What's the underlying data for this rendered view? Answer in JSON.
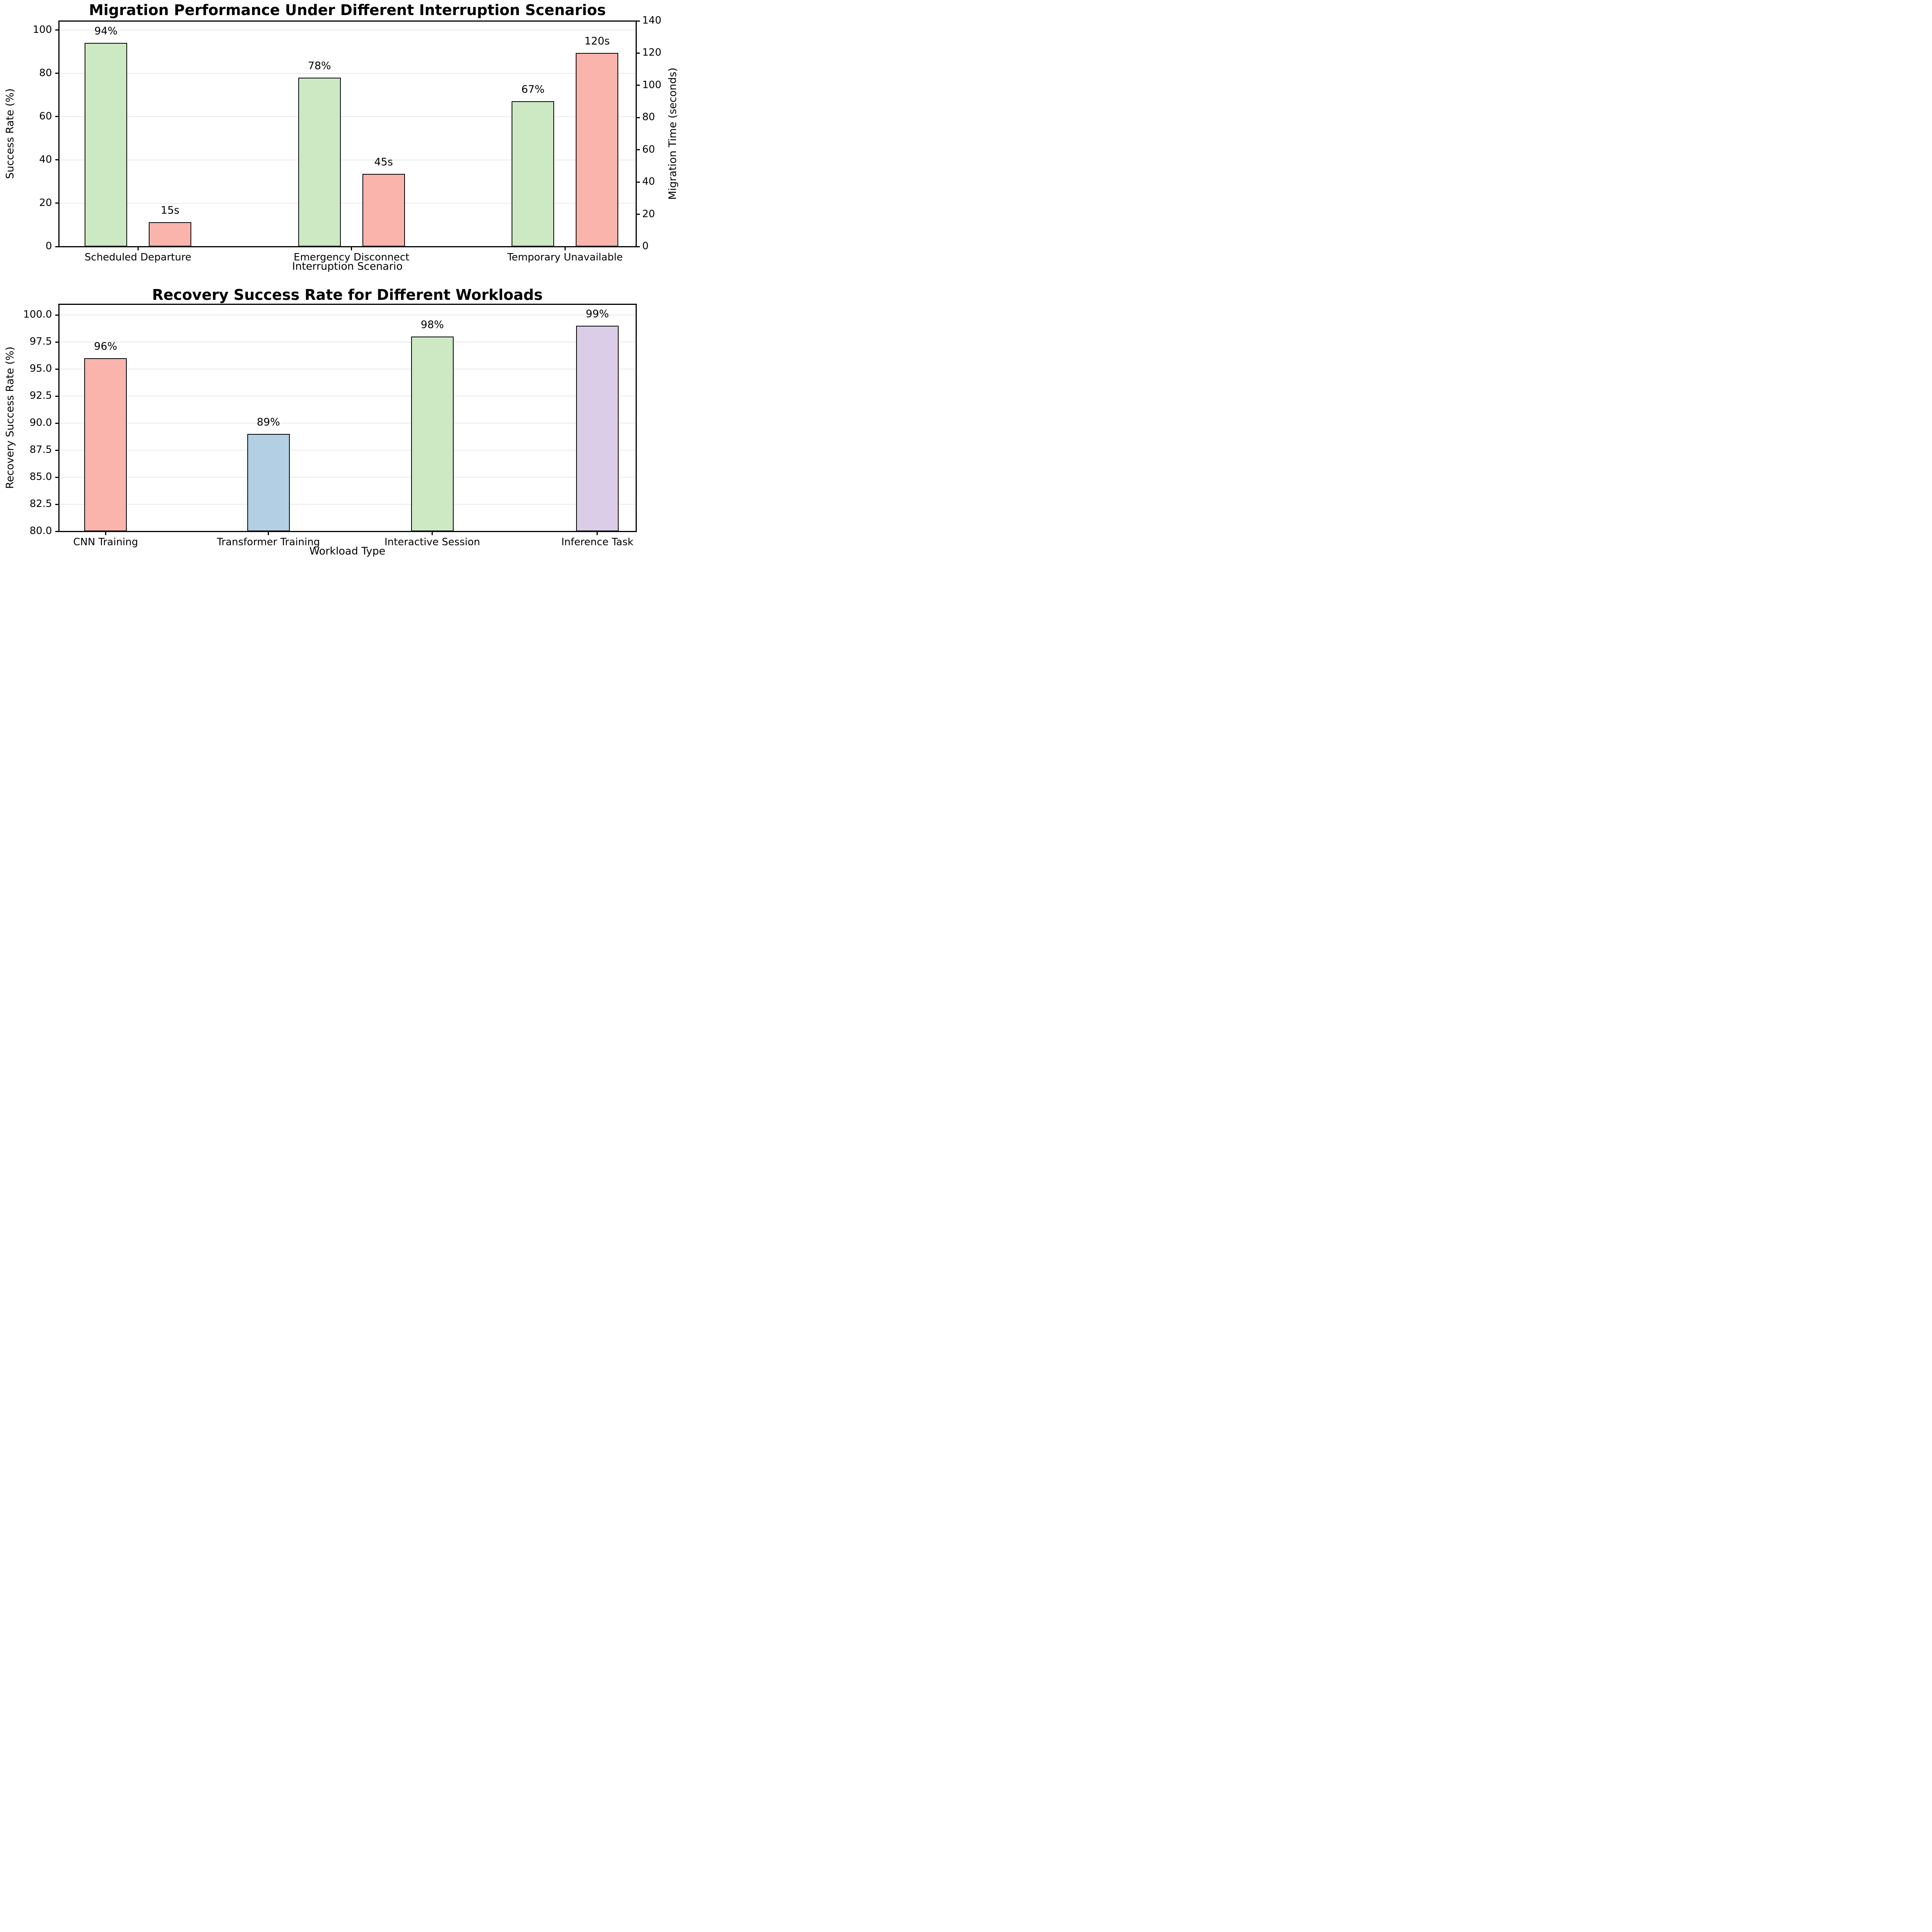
{
  "figure": {
    "background": "#ffffff",
    "text_color": "#000000",
    "grid_color": "#e9e9e9",
    "edge_color": "#000000"
  },
  "chart_data": [
    {
      "type": "bar",
      "title": "Migration Performance Under Different Interruption Scenarios",
      "xlabel": "Interruption Scenario",
      "ylabel": "Success Rate (%)",
      "ylabel_right": "Migration Time (seconds)",
      "categories": [
        "Scheduled Departure",
        "Emergency Disconnect",
        "Temporary Unavailable"
      ],
      "series": [
        {
          "name": "Success Rate",
          "axis": "left",
          "values": [
            94,
            78,
            67
          ],
          "bar_labels": [
            "94%",
            "78%",
            "67%"
          ],
          "color": "#cde9c3",
          "edge_color": "#000000"
        },
        {
          "name": "Migration Time",
          "axis": "right",
          "values": [
            15,
            45,
            120
          ],
          "bar_labels": [
            "15s",
            "45s",
            "120s"
          ],
          "color": "#fab4ab",
          "edge_color": "#000000"
        }
      ],
      "left_axis": {
        "range": [
          0,
          104.2
        ],
        "ticks": [
          0,
          20,
          40,
          60,
          80,
          100
        ],
        "tick_labels": [
          "0",
          "20",
          "40",
          "60",
          "80",
          "100"
        ]
      },
      "right_axis": {
        "range": [
          0,
          140
        ],
        "ticks": [
          0,
          20,
          40,
          60,
          80,
          100,
          120,
          140
        ],
        "tick_labels": [
          "0",
          "20",
          "40",
          "60",
          "80",
          "100",
          "120",
          "140"
        ]
      },
      "grid": "horizontal",
      "legend": "none"
    },
    {
      "type": "bar",
      "title": "Recovery Success Rate for Different Workloads",
      "xlabel": "Workload Type",
      "ylabel": "Recovery Success Rate (%)",
      "categories": [
        "CNN Training",
        "Transformer Training",
        "Interactive Session",
        "Inference Task"
      ],
      "series": [
        {
          "name": "Recovery Success Rate",
          "axis": "left",
          "values": [
            96,
            89,
            98,
            99
          ],
          "bar_labels": [
            "96%",
            "89%",
            "98%",
            "99%"
          ],
          "colors": [
            "#fab4ab",
            "#b3cfe3",
            "#cde9c3",
            "#dbcce8"
          ],
          "edge_color": "#000000"
        }
      ],
      "left_axis": {
        "range": [
          80,
          101
        ],
        "ticks": [
          80,
          82.5,
          85,
          87.5,
          90,
          92.5,
          95,
          97.5,
          100
        ],
        "tick_labels": [
          "80.0",
          "82.5",
          "85.0",
          "87.5",
          "90.0",
          "92.5",
          "95.0",
          "97.5",
          "100.0"
        ]
      },
      "grid": "horizontal",
      "legend": "none"
    }
  ]
}
